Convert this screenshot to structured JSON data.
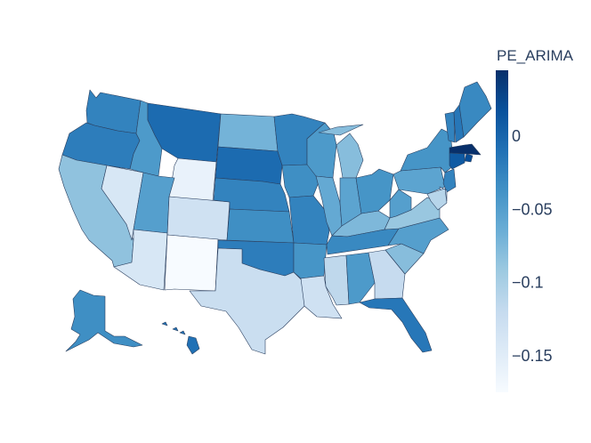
{
  "colorbar": {
    "title": "PE_ARIMA",
    "range": [
      -0.175,
      0.045
    ],
    "ticks": [
      {
        "value": 0,
        "label": "0"
      },
      {
        "value": -0.05,
        "label": "−0.05"
      },
      {
        "value": -0.1,
        "label": "−0.1"
      },
      {
        "value": -0.15,
        "label": "−0.15"
      }
    ],
    "colorscale": [
      [
        0.0,
        "#f7fbff"
      ],
      [
        0.125,
        "#deebf7"
      ],
      [
        0.25,
        "#c6dbef"
      ],
      [
        0.375,
        "#9ecae1"
      ],
      [
        0.5,
        "#6baed6"
      ],
      [
        0.625,
        "#4292c6"
      ],
      [
        0.75,
        "#2171b5"
      ],
      [
        0.875,
        "#08519c"
      ],
      [
        1.0,
        "#08306b"
      ]
    ]
  },
  "map_data": {
    "type": "choropleth",
    "scope": "usa",
    "variable": "PE_ARIMA",
    "states": [
      {
        "code": "WA",
        "value": -0.025
      },
      {
        "code": "OR",
        "value": -0.02
      },
      {
        "code": "CA",
        "value": -0.085
      },
      {
        "code": "NV",
        "value": -0.14
      },
      {
        "code": "ID",
        "value": -0.045
      },
      {
        "code": "MT",
        "value": -0.005
      },
      {
        "code": "WY",
        "value": -0.16
      },
      {
        "code": "UT",
        "value": -0.05
      },
      {
        "code": "AZ",
        "value": -0.14
      },
      {
        "code": "CO",
        "value": -0.13
      },
      {
        "code": "NM",
        "value": -0.175
      },
      {
        "code": "ND",
        "value": -0.07
      },
      {
        "code": "SD",
        "value": -0.005
      },
      {
        "code": "NE",
        "value": -0.025
      },
      {
        "code": "KS",
        "value": -0.035
      },
      {
        "code": "OK",
        "value": -0.02
      },
      {
        "code": "TX",
        "value": -0.125
      },
      {
        "code": "MN",
        "value": -0.025
      },
      {
        "code": "IA",
        "value": -0.035
      },
      {
        "code": "MO",
        "value": -0.025
      },
      {
        "code": "AR",
        "value": -0.04
      },
      {
        "code": "LA",
        "value": -0.13
      },
      {
        "code": "WI",
        "value": -0.045
      },
      {
        "code": "IL",
        "value": -0.06
      },
      {
        "code": "MI",
        "value": -0.08
      },
      {
        "code": "IN",
        "value": -0.055
      },
      {
        "code": "KY",
        "value": -0.075
      },
      {
        "code": "TN",
        "value": -0.03
      },
      {
        "code": "MS",
        "value": -0.115
      },
      {
        "code": "AL",
        "value": -0.045
      },
      {
        "code": "OH",
        "value": -0.04
      },
      {
        "code": "GA",
        "value": -0.12
      },
      {
        "code": "FL",
        "value": -0.015
      },
      {
        "code": "SC",
        "value": -0.08
      },
      {
        "code": "NC",
        "value": -0.05
      },
      {
        "code": "VA",
        "value": -0.09
      },
      {
        "code": "WV",
        "value": -0.05
      },
      {
        "code": "PA",
        "value": -0.055
      },
      {
        "code": "NY",
        "value": -0.04
      },
      {
        "code": "VT",
        "value": -0.025
      },
      {
        "code": "NH",
        "value": -0.015
      },
      {
        "code": "ME",
        "value": -0.03
      },
      {
        "code": "MA",
        "value": 0.045
      },
      {
        "code": "RI",
        "value": 0.02
      },
      {
        "code": "CT",
        "value": 0.01
      },
      {
        "code": "NJ",
        "value": -0.025
      },
      {
        "code": "DE",
        "value": -0.12
      },
      {
        "code": "MD",
        "value": -0.11
      },
      {
        "code": "AK",
        "value": -0.035
      },
      {
        "code": "HI",
        "value": -0.01
      }
    ]
  }
}
